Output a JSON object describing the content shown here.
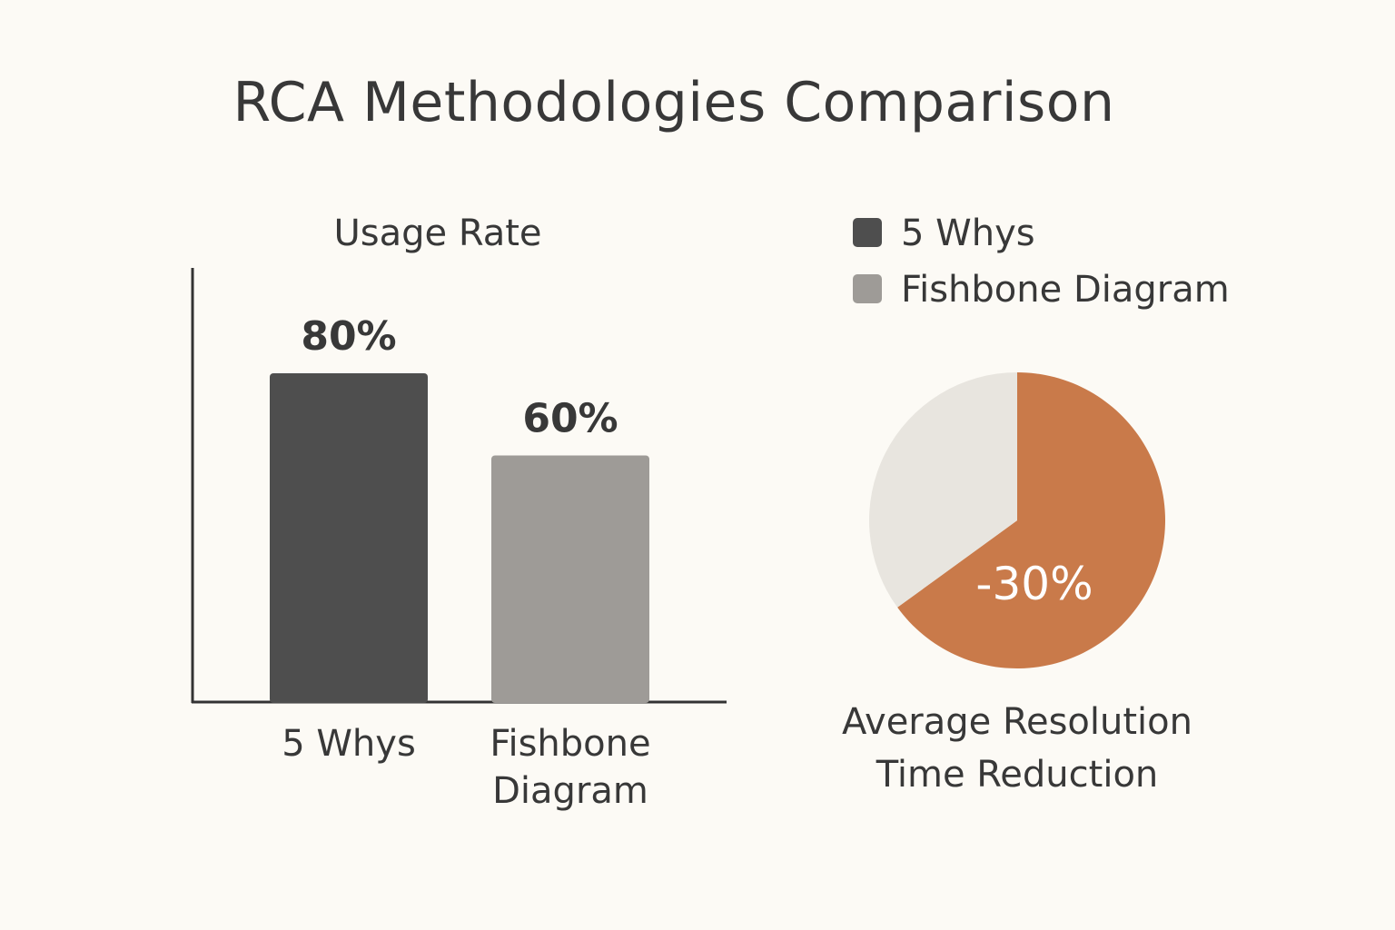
{
  "title": "RCA Methodologies Comparison",
  "colors": {
    "background": "#fcfaf5",
    "bar_dark": "#4e4e4e",
    "bar_light": "#9e9b97",
    "pie_accent": "#c97a4a",
    "pie_rest": "#e8e5df",
    "axis": "#333333",
    "text": "#383838"
  },
  "legend": [
    {
      "label": "5 Whys",
      "color": "#4e4e4e"
    },
    {
      "label": "Fishbone Diagram",
      "color": "#9e9b97"
    }
  ],
  "chart_data": [
    {
      "type": "bar",
      "title": "Usage Rate",
      "categories": [
        [
          "5 Whys"
        ],
        [
          "Fishbone",
          "Diagram"
        ]
      ],
      "values": [
        80,
        60
      ],
      "value_labels": [
        "80%",
        "60%"
      ],
      "colors": [
        "#4e4e4e",
        "#9e9b97"
      ],
      "ylim": [
        0,
        100
      ],
      "grid": false
    },
    {
      "type": "pie",
      "title": [
        "Average Resolution",
        "Time Reduction"
      ],
      "slices": [
        {
          "value": 65,
          "label": "-30%",
          "color": "#c97a4a"
        },
        {
          "value": 35,
          "label": "",
          "color": "#e8e5df"
        }
      ]
    }
  ]
}
